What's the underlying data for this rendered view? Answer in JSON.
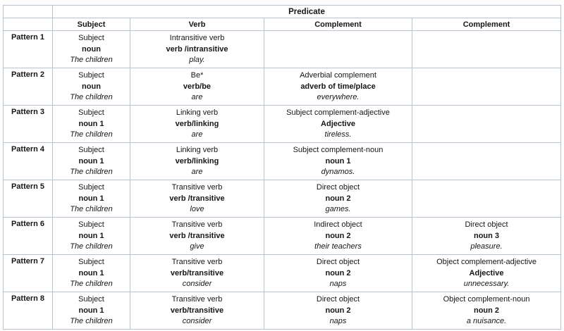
{
  "colors": {
    "border": "#b9c3cd",
    "outer_border": "#9fabb6",
    "text": "#161616",
    "background": "#ffffff"
  },
  "table": {
    "predicate_header": "Predicate",
    "columns": [
      "Subject",
      "Verb",
      "Complement",
      "Complement"
    ],
    "rows": [
      {
        "label": "Pattern 1",
        "cells": [
          {
            "lines": [
              "Subject",
              "noun",
              "The children"
            ]
          },
          {
            "lines": [
              "Intransitive verb",
              "verb /intransitive",
              "play."
            ]
          },
          {
            "lines": []
          },
          {
            "lines": []
          }
        ]
      },
      {
        "label": "Pattern 2",
        "cells": [
          {
            "lines": [
              "Subject",
              "noun",
              "The children"
            ]
          },
          {
            "lines": [
              "Be*",
              "verb/be",
              "are"
            ]
          },
          {
            "lines": [
              "Adverbial complement",
              "adverb of time/place",
              "everywhere."
            ]
          },
          {
            "lines": []
          }
        ]
      },
      {
        "label": "Pattern 3",
        "cells": [
          {
            "lines": [
              "Subject",
              "noun 1",
              "The children"
            ]
          },
          {
            "lines": [
              "Linking verb",
              "verb/linking",
              "are"
            ]
          },
          {
            "lines": [
              "Subject complement-adjective",
              "Adjective",
              "tireless."
            ]
          },
          {
            "lines": []
          }
        ]
      },
      {
        "label": "Pattern 4",
        "cells": [
          {
            "lines": [
              "Subject",
              "noun 1",
              "The children"
            ]
          },
          {
            "lines": [
              "Linking verb",
              "verb/linking",
              "are"
            ]
          },
          {
            "lines": [
              "Subject complement-noun",
              "noun 1",
              "dynamos."
            ]
          },
          {
            "lines": []
          }
        ]
      },
      {
        "label": "Pattern 5",
        "cells": [
          {
            "lines": [
              "Subject",
              "noun 1",
              "The children"
            ]
          },
          {
            "lines": [
              "Transitive verb",
              "verb /transitive",
              "love"
            ]
          },
          {
            "lines": [
              "Direct object",
              "noun 2",
              "games."
            ]
          },
          {
            "lines": []
          }
        ]
      },
      {
        "label": "Pattern 6",
        "cells": [
          {
            "lines": [
              "Subject",
              "noun 1",
              "The children"
            ]
          },
          {
            "lines": [
              "Transitive verb",
              "verb /transitive",
              "give"
            ]
          },
          {
            "lines": [
              "Indirect object",
              "noun 2",
              "their teachers"
            ]
          },
          {
            "lines": [
              "Direct object",
              "noun 3",
              "pleasure."
            ]
          }
        ]
      },
      {
        "label": "Pattern 7",
        "cells": [
          {
            "lines": [
              "Subject",
              "noun 1",
              "The children"
            ]
          },
          {
            "lines": [
              "Transitive verb",
              "verb/transitive",
              "consider"
            ]
          },
          {
            "lines": [
              "Direct object",
              "noun 2",
              "naps"
            ]
          },
          {
            "lines": [
              "Object complement-adjective",
              "Adjective",
              "unnecessary."
            ]
          }
        ]
      },
      {
        "label": "Pattern 8",
        "cells": [
          {
            "lines": [
              "Subject",
              "noun 1",
              "The children"
            ]
          },
          {
            "lines": [
              "Transitive verb",
              "verb/transitive",
              "consider"
            ]
          },
          {
            "lines": [
              "Direct object",
              "noun 2",
              "naps"
            ]
          },
          {
            "lines": [
              "Object complement-noun",
              "noun 2",
              "a nuisance."
            ]
          }
        ]
      }
    ]
  }
}
